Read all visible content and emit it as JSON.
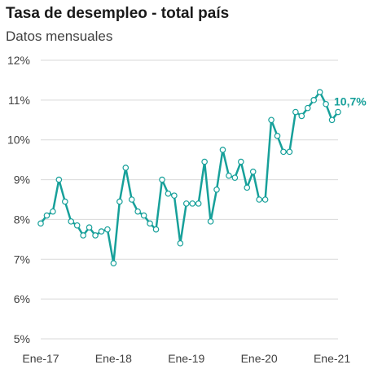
{
  "chart_data": {
    "type": "line",
    "title": "Tasa de desempleo - total país",
    "subtitle": "Datos mensuales",
    "xlabel": "",
    "ylabel": "",
    "y_tick_labels": [
      "5%",
      "6%",
      "7%",
      "8%",
      "9%",
      "10%",
      "11%",
      "12%"
    ],
    "y_tick_values": [
      5,
      6,
      7,
      8,
      9,
      10,
      11,
      12
    ],
    "ylim": [
      5,
      12
    ],
    "x_tick_labels": [
      "Ene-17",
      "Ene-18",
      "Ene-19",
      "Ene-20",
      "Ene-21"
    ],
    "x_tick_index": [
      0,
      12,
      24,
      36,
      48
    ],
    "grid": "horizontal",
    "series_color": "#17a09a",
    "end_label": "10,7%",
    "values": [
      7.9,
      8.1,
      8.2,
      9.0,
      8.45,
      7.95,
      7.85,
      7.6,
      7.8,
      7.6,
      7.7,
      7.75,
      6.9,
      8.45,
      9.3,
      8.5,
      8.2,
      8.1,
      7.9,
      7.75,
      9.0,
      8.65,
      8.6,
      7.4,
      8.4,
      8.4,
      8.4,
      9.45,
      7.95,
      8.75,
      9.75,
      9.1,
      9.05,
      9.45,
      8.8,
      9.2,
      8.5,
      8.5,
      10.5,
      10.1,
      9.7,
      9.7,
      10.7,
      10.6,
      10.8,
      11.0,
      11.2,
      10.9,
      10.5,
      10.7
    ]
  }
}
